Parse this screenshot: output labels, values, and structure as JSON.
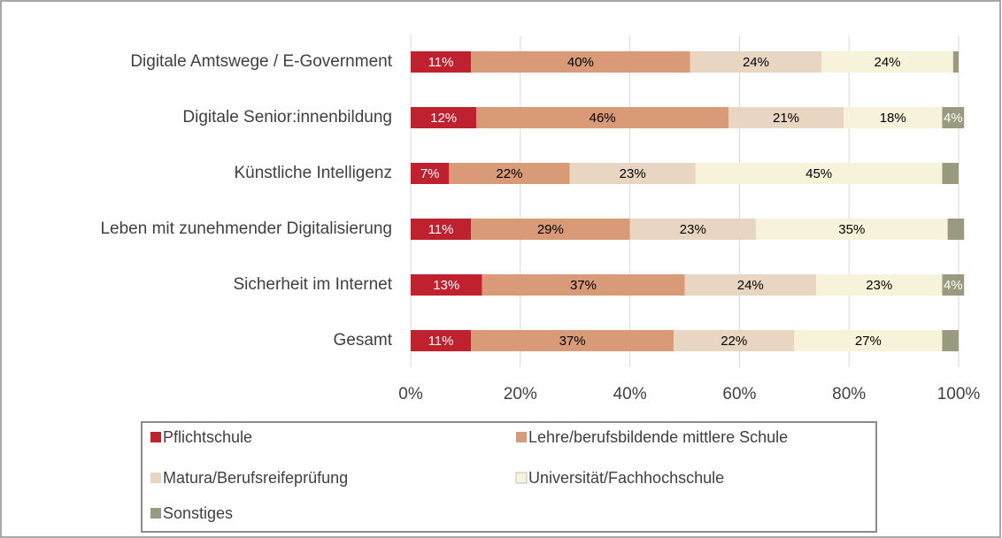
{
  "chart_data": {
    "type": "stacked_barh",
    "categories": [
      "Digitale Amtswege / E-Government",
      "Digitale Senior:innenbildung",
      "Künstliche Intelligenz",
      "Leben mit zunehmender Digitalisierung",
      "Sicherheit im Internet",
      "Gesamt"
    ],
    "series": [
      {
        "name": "Pflichtschule",
        "color": "#c0212f",
        "label_color": "#ffffff",
        "values": [
          11,
          12,
          7,
          11,
          13,
          11
        ],
        "value_labels": [
          "11%",
          "12%",
          "7%",
          "11%",
          "13%",
          "11%"
        ]
      },
      {
        "name": "Lehre/berufsbildende mittlere Schule",
        "color": "#d99a78",
        "label_color": "#000000",
        "values": [
          40,
          46,
          22,
          29,
          37,
          37
        ],
        "value_labels": [
          "40%",
          "46%",
          "22%",
          "29%",
          "37%",
          "37%"
        ]
      },
      {
        "name": "Matura/Berufsreifeprüfung",
        "color": "#e9d6c2",
        "label_color": "#000000",
        "values": [
          24,
          21,
          23,
          23,
          24,
          22
        ],
        "value_labels": [
          "24%",
          "21%",
          "23%",
          "23%",
          "24%",
          "22%"
        ]
      },
      {
        "name": "Universität/Fachhochschule",
        "color": "#f7f2da",
        "label_color": "#000000",
        "values": [
          24,
          18,
          45,
          35,
          23,
          27
        ],
        "value_labels": [
          "24%",
          "18%",
          "45%",
          "35%",
          "23%",
          "27%"
        ]
      },
      {
        "name": "Sonstiges",
        "color": "#9a9a80",
        "label_color": "#ffffff",
        "values": [
          1,
          4,
          3,
          3,
          4,
          3
        ],
        "value_labels": [
          null,
          "4%",
          null,
          null,
          "4%",
          null
        ]
      }
    ],
    "xlim": [
      0,
      100
    ],
    "xticks": [
      {
        "value": 0,
        "label": "0%"
      },
      {
        "value": 20,
        "label": "20%"
      },
      {
        "value": 40,
        "label": "40%"
      },
      {
        "value": 60,
        "label": "60%"
      },
      {
        "value": 80,
        "label": "80%"
      },
      {
        "value": 100,
        "label": "100%"
      }
    ],
    "grid": true,
    "legend": "bottom"
  }
}
